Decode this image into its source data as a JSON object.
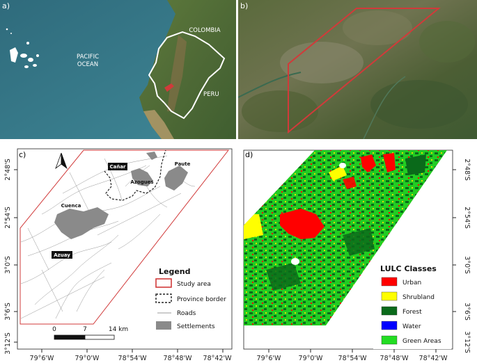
{
  "panels": {
    "a": {
      "label": "a)",
      "countries": [
        "COLOMBIA",
        "PERU"
      ],
      "ocean_line1": "PACIFIC",
      "ocean_line2": "OCEAN"
    },
    "b": {
      "label": "b)"
    },
    "c": {
      "label": "c)",
      "places": {
        "canar": "Cañar",
        "paute": "Paute",
        "azogues": "Azogues",
        "cuenca": "Cuenca",
        "azuay": "Azuay"
      }
    },
    "d": {
      "label": "d)"
    }
  },
  "legend_c": {
    "title": "Legend",
    "items": [
      {
        "label": "Study area",
        "color": "#d13a3a"
      },
      {
        "label": "Province border",
        "color": "#222222"
      },
      {
        "label": "Roads",
        "color": "#777777"
      },
      {
        "label": "Settlements",
        "color": "#8a8a8a"
      }
    ]
  },
  "scalebar": {
    "ticks": [
      "0",
      "7",
      "14 km"
    ]
  },
  "legend_d": {
    "title": "LULC Classes",
    "items": [
      {
        "label": "Urban",
        "color": "#ff0000"
      },
      {
        "label": "Shrubland",
        "color": "#ffff00"
      },
      {
        "label": "Forest",
        "color": "#0a6a1a"
      },
      {
        "label": "Water",
        "color": "#0000ff"
      },
      {
        "label": "Green Areas",
        "color": "#22dd22"
      }
    ]
  },
  "axes": {
    "x_ticks": [
      "79°6'W",
      "79°0'W",
      "78°54'W",
      "78°48'W",
      "78°42'W"
    ],
    "y_ticks": [
      "2°48'S",
      "2°54'S",
      "3°0'S",
      "3°6'S",
      "3°12'S"
    ]
  },
  "colors": {
    "study_area": "#d13a3a",
    "ocean": "#3e7a8a",
    "land": "#6b7a4a"
  }
}
